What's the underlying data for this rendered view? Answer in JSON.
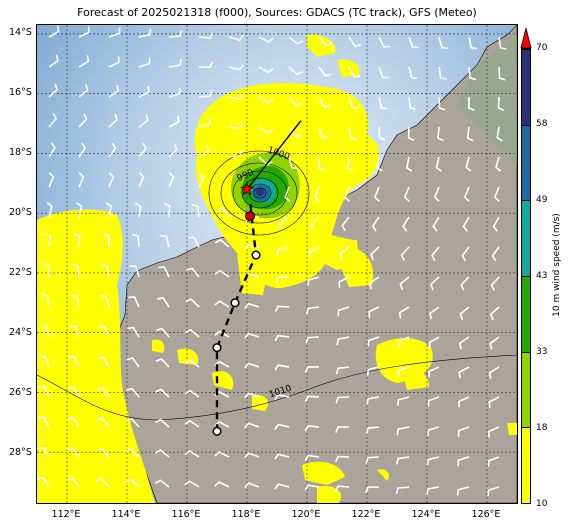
{
  "title": "Forecast of 2025021318 (f000), Sources: GDACS (TC track), GFS (Meteo)",
  "lat_labels": [
    "14°S",
    "16°S",
    "18°S",
    "20°S",
    "22°S",
    "24°S",
    "26°S",
    "28°S"
  ],
  "lon_labels": [
    "112°E",
    "114°E",
    "116°E",
    "118°E",
    "120°E",
    "122°E",
    "124°E",
    "126°E"
  ],
  "isobar_labels": [
    "1000",
    "990",
    "1010"
  ],
  "colorbar": {
    "label": "10 m wind speed (m/s)",
    "ticks": [
      "70",
      "58",
      "49",
      "43",
      "33",
      "18",
      "10"
    ],
    "colors": [
      "#ffff00",
      "#8fd400",
      "#22aa00",
      "#15a6a0",
      "#1e6aa0",
      "#2a3275"
    ],
    "extend_color": "#ff0000"
  },
  "track": {
    "points": [
      {
        "lon": 117.0,
        "lat": -27.3
      },
      {
        "lon": 117.0,
        "lat": -24.5
      },
      {
        "lon": 117.6,
        "lat": -23.0
      },
      {
        "lon": 118.3,
        "lat": -21.4
      },
      {
        "lon": 118.1,
        "lat": -19.6
      }
    ],
    "current": {
      "lon": 118.0,
      "lat": -19.2
    },
    "forecast_end": {
      "lon": 118.1,
      "lat": -20.1
    },
    "motion_line_end": {
      "lon": 119.8,
      "lat": -16.9
    }
  },
  "extent": {
    "lon_min": 111.0,
    "lon_max": 127.0,
    "lat_min": -29.7,
    "lat_max": -13.7
  }
}
